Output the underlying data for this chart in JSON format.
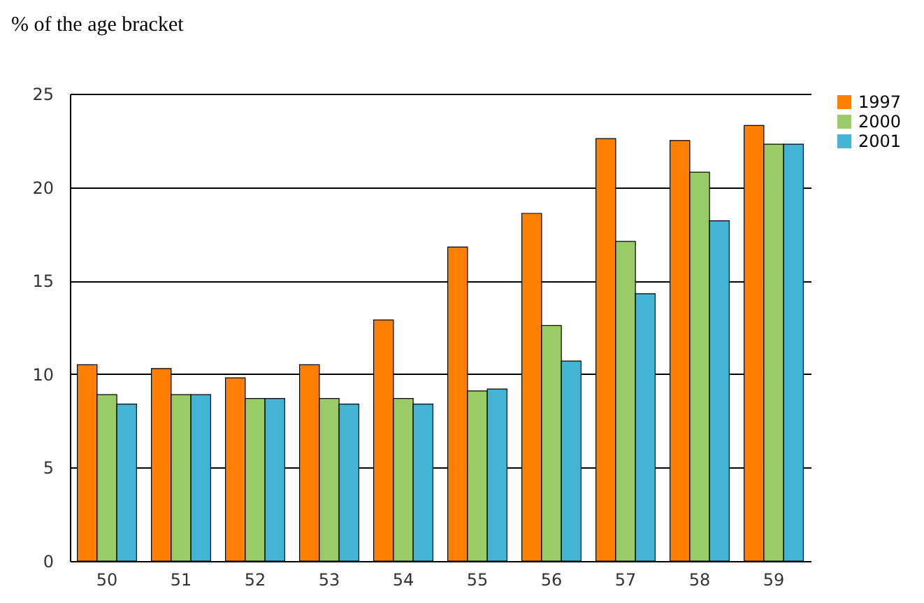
{
  "chart_data": {
    "type": "bar",
    "ylabel": "% of the age bracket",
    "categories": [
      "50",
      "51",
      "52",
      "53",
      "54",
      "55",
      "56",
      "57",
      "58",
      "59"
    ],
    "series": [
      {
        "name": "1997",
        "color": "#ff7f00",
        "values": [
          10.5,
          10.3,
          9.8,
          10.5,
          12.9,
          16.8,
          18.6,
          22.6,
          22.5,
          23.3
        ]
      },
      {
        "name": "2000",
        "color": "#99cc66",
        "values": [
          8.9,
          8.9,
          8.7,
          8.7,
          8.7,
          9.1,
          12.6,
          17.1,
          20.8,
          22.3
        ]
      },
      {
        "name": "2001",
        "color": "#44b4d4",
        "values": [
          8.4,
          8.9,
          8.7,
          8.4,
          8.4,
          9.2,
          10.7,
          14.3,
          18.2,
          22.3
        ]
      }
    ],
    "ylim": [
      0,
      25
    ],
    "yticks": [
      0,
      5,
      10,
      15,
      20,
      25
    ],
    "grid": "y",
    "legend": "right"
  }
}
